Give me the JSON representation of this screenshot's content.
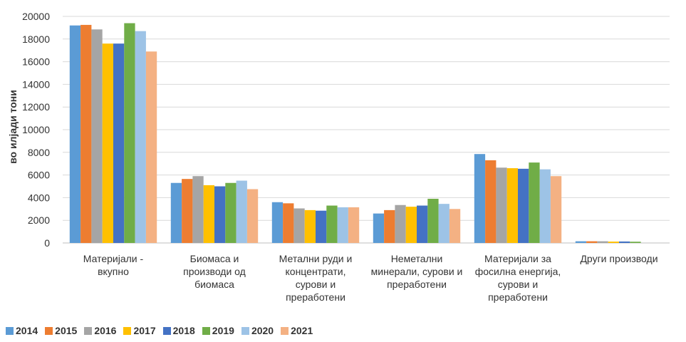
{
  "chart_data": {
    "type": "bar",
    "title": "",
    "xlabel": "",
    "ylabel": "во илјади тони",
    "ylim": [
      0,
      20000
    ],
    "yticks": [
      0,
      2000,
      4000,
      6000,
      8000,
      10000,
      12000,
      14000,
      16000,
      18000,
      20000
    ],
    "grid": true,
    "legend_position": "bottom-left",
    "categories": [
      "Материјали -\nвкупно",
      "Биомаса и\nпроизводи од\nбиомаса",
      "Метални руди и\nконцентрати,\nсурови и\nпреработени",
      "Неметални\nминерали, сурови и\nпреработени",
      "Материјали за\nфосилна енергија,\nсурови и\nпреработени",
      "Други производи"
    ],
    "series": [
      {
        "name": "2014",
        "color": "#5b9bd5",
        "values": [
          19200,
          5300,
          3600,
          2600,
          7850,
          150
        ]
      },
      {
        "name": "2015",
        "color": "#ed7d31",
        "values": [
          19250,
          5650,
          3500,
          2900,
          7300,
          150
        ]
      },
      {
        "name": "2016",
        "color": "#a5a5a5",
        "values": [
          18850,
          5900,
          3050,
          3350,
          6650,
          150
        ]
      },
      {
        "name": "2017",
        "color": "#ffc000",
        "values": [
          17600,
          5100,
          2900,
          3200,
          6600,
          120
        ]
      },
      {
        "name": "2018",
        "color": "#4472c4",
        "values": [
          17600,
          5000,
          2850,
          3300,
          6550,
          130
        ]
      },
      {
        "name": "2019",
        "color": "#70ad47",
        "values": [
          19400,
          5300,
          3300,
          3900,
          7100,
          110
        ]
      },
      {
        "name": "2020",
        "color": "#9dc3e6",
        "values": [
          18700,
          5500,
          3150,
          3450,
          6500,
          0
        ]
      },
      {
        "name": "2021",
        "color": "#f4b183",
        "values": [
          16900,
          4750,
          3150,
          3000,
          5900,
          0
        ]
      }
    ]
  }
}
